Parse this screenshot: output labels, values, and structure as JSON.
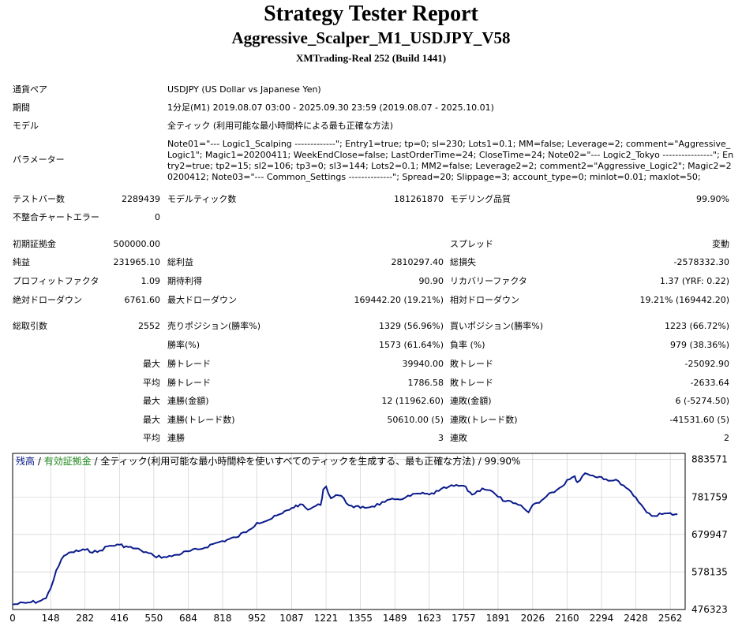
{
  "header": {
    "title": "Strategy Tester Report",
    "subtitle": "Aggressive_Scalper_M1_USDJPY_V58",
    "server": "XMTrading-Real 252 (Build 1441)"
  },
  "settings": {
    "symbol_label": "通貨ペア",
    "symbol_value": "USDJPY (US Dollar vs Japanese Yen)",
    "period_label": "期間",
    "period_value": "1分足(M1) 2019.08.07 03:00 - 2025.09.30 23:59 (2019.08.07 - 2025.10.01)",
    "model_label": "モデル",
    "model_value": "全ティック (利用可能な最小時間枠による最も正確な方法)",
    "params_label": "パラメーター",
    "params_value": "Note01=\"--- Logic1_Scalping -------------\"; Entry1=true; tp=0; sl=230; Lots1=0.1; MM=false; Leverage=2; comment=\"Aggressive_Logic1\"; Magic1=20200411; WeekEndClose=false; LastOrderTime=24; CloseTime=24; Note02=\"--- Logic2_Tokyo ----------------\"; Entry2=true; tp2=15; sl2=106; tp3=0; sl3=144; Lots2=0.1; MM2=false; Leverage2=2; comment2=\"Aggressive_Logic2\"; Magic2=20200412; Note03=\"--- Common_Settings --------------\"; Spread=20; Slippage=3; account_type=0; minlot=0.01; maxlot=50;"
  },
  "stats": {
    "bars_label": "テストバー数",
    "bars_value": "2289439",
    "ticks_label": "モデルティック数",
    "ticks_value": "181261870",
    "quality_label": "モデリング品質",
    "quality_value": "99.90%",
    "mismatch_label": "不整合チャートエラー",
    "mismatch_value": "0",
    "deposit_label": "初期証拠金",
    "deposit_value": "500000.00",
    "spread_label": "スプレッド",
    "spread_value": "変動",
    "net_label": "純益",
    "net_value": "231965.10",
    "gross_profit_label": "総利益",
    "gross_profit_value": "2810297.40",
    "gross_loss_label": "総損失",
    "gross_loss_value": "-2578332.30",
    "pf_label": "プロフィットファクタ",
    "pf_value": "1.09",
    "expected_label": "期待利得",
    "expected_value": "90.90",
    "recovery_label": "リカバリーファクタ",
    "recovery_value": "1.37 (YRF: 0.22)",
    "abs_dd_label": "絶対ドローダウン",
    "abs_dd_value": "6761.60",
    "max_dd_label": "最大ドローダウン",
    "max_dd_value": "169442.20 (19.21%)",
    "rel_dd_label": "相対ドローダウン",
    "rel_dd_value": "19.21% (169442.20)",
    "total_trades_label": "総取引数",
    "total_trades_value": "2552",
    "short_label": "売りポジション(勝率%)",
    "short_value": "1329 (56.96%)",
    "long_label": "買いポジション(勝率%)",
    "long_value": "1223 (66.72%)",
    "winrate_label": "勝率(%)",
    "winrate_value": "1573 (61.64%)",
    "lossrate_label": "負率 (%)",
    "lossrate_value": "979 (38.36%)",
    "max_label": "最大",
    "avg_label": "平均",
    "largest_win_label": "勝トレード",
    "largest_win_value": "39940.00",
    "largest_loss_label": "敗トレード",
    "largest_loss_value": "-25092.90",
    "avg_win_label": "勝トレード",
    "avg_win_value": "1786.58",
    "avg_loss_label": "敗トレード",
    "avg_loss_value": "-2633.64",
    "cons_wins_label": "連勝(金額)",
    "cons_wins_value": "12 (11962.60)",
    "cons_losses_label": "連敗(金額)",
    "cons_losses_value": "6 (-5274.50)",
    "cons_profit_label": "連勝(トレード数)",
    "cons_profit_value": "50610.00 (5)",
    "cons_loss_label": "連敗(トレード数)",
    "cons_loss_value": "-41531.60 (5)",
    "avg_cons_wins_label": "連勝",
    "avg_cons_wins_value": "3",
    "avg_cons_losses_label": "連敗",
    "avg_cons_losses_value": "2"
  },
  "chart_data": {
    "type": "line",
    "legend": {
      "balance": "残高",
      "sep1": " / ",
      "equity": "有効証拠金",
      "sep2": " / ",
      "model": "全ティック(利用可能な最小時間枠を使いすべてのティックを生成する、最も正確な方法)",
      "sep3": " / ",
      "quality": "99.90%"
    },
    "x_ticks": [
      "0",
      "148",
      "282",
      "416",
      "550",
      "684",
      "818",
      "952",
      "1087",
      "1221",
      "1355",
      "1489",
      "1623",
      "1757",
      "1891",
      "2026",
      "2160",
      "2294",
      "2428",
      "2562"
    ],
    "y_ticks": [
      "883571",
      "781759",
      "679947",
      "578135",
      "476323"
    ],
    "ylim": [
      476323,
      900000
    ],
    "xlim": [
      0,
      2620
    ],
    "colors": {
      "balance": "#0a1a8c",
      "equity": "#1e8c1e",
      "grid": "#c8c8c8",
      "frame": "#000000"
    },
    "series": [
      {
        "x": [
          0,
          50,
          100,
          130,
          148,
          170,
          200,
          230,
          282,
          330,
          370,
          416,
          450,
          500,
          550,
          600,
          640,
          684,
          730,
          780,
          818,
          870,
          920,
          952,
          1000,
          1050,
          1087,
          1120,
          1150,
          1180,
          1200,
          1210,
          1221,
          1240,
          1260,
          1280,
          1300,
          1320,
          1355,
          1400,
          1450,
          1489,
          1530,
          1580,
          1623,
          1660,
          1700,
          1757,
          1790,
          1830,
          1860,
          1891,
          1920,
          1950,
          1990,
          2010,
          2026,
          2060,
          2100,
          2140,
          2160,
          2190,
          2200,
          2230,
          2260,
          2294,
          2330,
          2360,
          2400,
          2428,
          2450,
          2470,
          2500,
          2530,
          2562,
          2590
        ],
        "y": [
          490000,
          494000,
          498000,
          507000,
          533000,
          583000,
          622000,
          632000,
          638000,
          632000,
          648000,
          652000,
          646000,
          637000,
          622000,
          618000,
          625000,
          634000,
          640000,
          654000,
          662000,
          672000,
          692000,
          712000,
          720000,
          737000,
          752000,
          762000,
          747000,
          757000,
          760000,
          802000,
          810000,
          778000,
          787000,
          785000,
          765000,
          758000,
          752000,
          756000,
          768000,
          775000,
          780000,
          791000,
          788000,
          798000,
          810000,
          812000,
          788000,
          805000,
          800000,
          782000,
          770000,
          765000,
          752000,
          740000,
          760000,
          772000,
          794000,
          810000,
          828000,
          838000,
          822000,
          846000,
          840000,
          836000,
          826000,
          825000,
          802000,
          780000,
          760000,
          740000,
          730000,
          735000,
          738000,
          735000
        ]
      }
    ]
  }
}
